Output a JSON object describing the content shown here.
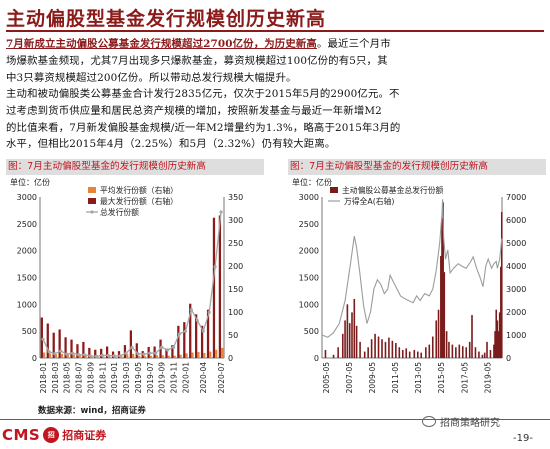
{
  "page": {
    "title": "主动偏股型基金发行规模创历史新高",
    "para1_lines": [
      {
        "hl": "7月新成立主动偏股公募基金发行规模超过2700亿份，为历史新高",
        "rest": "。最近三个月市"
      },
      {
        "hl": "",
        "rest": "场爆款基金频现，尤其7月出现多只爆款基金，募资规模超过100亿份的有5只，其"
      },
      {
        "hl": "",
        "rest": "中3只募资规模超过200亿份。所以带动总发行规模大幅提升。"
      }
    ],
    "para2_lines": [
      "主动和被动偏股类公募基金合计发行2835亿元，仅次于2015年5月的2900亿元。不",
      "过考虑到货币供应量和居民总资产规模的增加，按照新发基金与最近一年新增M2",
      "的比值来看，7月新发偏股基金规模/近一年M2增量约为1.3%，略高于2015年3月的",
      "水平，但相比2015年4月（2.25%）和5月（2.32%）仍有较大距离。"
    ],
    "source": "数据来源：wind，招商证券",
    "logo_text": "CMS",
    "logo_emblem": "招",
    "logo_cn": "招商证券",
    "wechat": "招商策略研究",
    "page_number": "-19-"
  },
  "colors": {
    "accent": "#8b1a1a",
    "header_red": "#c0161f",
    "avg_bar": "#e8843a",
    "max_bar": "#8b1a1a",
    "total_line": "#a6a6a6",
    "fund_bar": "#7b1c1c",
    "index_line": "#9c9c9c"
  },
  "chart_data": [
    {
      "type": "bar",
      "title": "图：7月主动偏股型基金的发行规模创历史新高",
      "unit_label": "单位：亿份",
      "ylim_left": [
        0,
        3000
      ],
      "yticks_left": [
        0,
        500,
        1000,
        1500,
        2000,
        2500,
        3000
      ],
      "ylim_right": [
        0,
        350
      ],
      "yticks_right": [
        0,
        50,
        100,
        150,
        200,
        250,
        300,
        350
      ],
      "xtick_labels": [
        "2018-01",
        "2018-03",
        "2018-05",
        "2018-07",
        "2018-09",
        "2018-11",
        "2019-01",
        "2019-03",
        "2019-05",
        "2019-07",
        "2019-09",
        "2019-11",
        "2020-01",
        "2020-04",
        "2020-07"
      ],
      "legend": [
        "平均发行份额（右轴）",
        "最大发行份额（右轴）",
        "总发行份额"
      ],
      "months": [
        "2018-01",
        "2018-02",
        "2018-03",
        "2018-04",
        "2018-05",
        "2018-06",
        "2018-07",
        "2018-08",
        "2018-09",
        "2018-10",
        "2018-11",
        "2018-12",
        "2019-01",
        "2019-02",
        "2019-03",
        "2019-04",
        "2019-05",
        "2019-06",
        "2019-07",
        "2019-08",
        "2019-09",
        "2019-10",
        "2019-11",
        "2019-12",
        "2020-01",
        "2020-02",
        "2020-03",
        "2020-04",
        "2020-05",
        "2020-06",
        "2020-07"
      ],
      "avg_values": [
        12,
        10,
        8,
        9,
        8,
        7,
        6,
        6,
        4,
        3,
        3,
        4,
        3,
        5,
        8,
        9,
        5,
        4,
        5,
        6,
        6,
        5,
        5,
        7,
        10,
        12,
        13,
        11,
        14,
        18,
        22
      ],
      "max_values": [
        88,
        75,
        55,
        62,
        45,
        40,
        30,
        35,
        22,
        18,
        20,
        25,
        14,
        15,
        28,
        60,
        32,
        15,
        24,
        25,
        40,
        20,
        28,
        70,
        78,
        118,
        95,
        70,
        105,
        305,
        310
      ],
      "total_values": [
        350,
        120,
        80,
        130,
        70,
        90,
        60,
        60,
        40,
        30,
        50,
        50,
        40,
        40,
        90,
        200,
        80,
        70,
        90,
        90,
        200,
        150,
        200,
        450,
        500,
        900,
        700,
        500,
        850,
        1700,
        2720
      ]
    },
    {
      "type": "bar",
      "title": "图：7月主动偏股型基金的发行规模创历史新高",
      "unit_label": "单位：亿份",
      "ylim_left": [
        0,
        3000
      ],
      "yticks_left": [
        0,
        500,
        1000,
        1500,
        2000,
        2500,
        3000
      ],
      "ylim_right": [
        0,
        7000
      ],
      "yticks_right": [
        0,
        1000,
        2000,
        3000,
        4000,
        5000,
        6000,
        7000
      ],
      "xtick_labels": [
        "2005-05",
        "2007-05",
        "2009-05",
        "2011-05",
        "2013-05",
        "2015-05",
        "2017-05",
        "2019-05"
      ],
      "x_range": [
        2005.0,
        2020.6
      ],
      "legend": [
        "主动偏股公募基金总发行份额",
        "万得全A(右轴)"
      ],
      "fund_series_points": [
        [
          2005.3,
          150
        ],
        [
          2006.0,
          60
        ],
        [
          2006.4,
          200
        ],
        [
          2006.8,
          450
        ],
        [
          2007.0,
          700
        ],
        [
          2007.2,
          1000
        ],
        [
          2007.4,
          650
        ],
        [
          2007.6,
          850
        ],
        [
          2007.8,
          1100
        ],
        [
          2008.0,
          600
        ],
        [
          2008.3,
          300
        ],
        [
          2008.7,
          120
        ],
        [
          2009.0,
          200
        ],
        [
          2009.3,
          350
        ],
        [
          2009.6,
          450
        ],
        [
          2009.9,
          400
        ],
        [
          2010.2,
          350
        ],
        [
          2010.5,
          300
        ],
        [
          2010.8,
          380
        ],
        [
          2011.1,
          320
        ],
        [
          2011.4,
          280
        ],
        [
          2011.7,
          200
        ],
        [
          2012.0,
          150
        ],
        [
          2012.3,
          180
        ],
        [
          2012.6,
          120
        ],
        [
          2013.0,
          150
        ],
        [
          2013.3,
          120
        ],
        [
          2013.6,
          100
        ],
        [
          2014.0,
          200
        ],
        [
          2014.3,
          250
        ],
        [
          2014.6,
          400
        ],
        [
          2014.9,
          700
        ],
        [
          2015.1,
          900
        ],
        [
          2015.3,
          1900
        ],
        [
          2015.4,
          2600
        ],
        [
          2015.5,
          2900
        ],
        [
          2015.6,
          1600
        ],
        [
          2015.8,
          500
        ],
        [
          2016.0,
          300
        ],
        [
          2016.3,
          250
        ],
        [
          2016.6,
          200
        ],
        [
          2016.9,
          250
        ],
        [
          2017.2,
          220
        ],
        [
          2017.5,
          200
        ],
        [
          2017.8,
          300
        ],
        [
          2018.0,
          800
        ],
        [
          2018.3,
          200
        ],
        [
          2018.6,
          120
        ],
        [
          2018.9,
          60
        ],
        [
          2019.1,
          100
        ],
        [
          2019.3,
          300
        ],
        [
          2019.6,
          150
        ],
        [
          2019.9,
          250
        ],
        [
          2020.0,
          500
        ],
        [
          2020.1,
          900
        ],
        [
          2020.2,
          700
        ],
        [
          2020.3,
          500
        ],
        [
          2020.4,
          850
        ],
        [
          2020.5,
          1700
        ],
        [
          2020.58,
          2720
        ]
      ],
      "index_series_points": [
        [
          2005.0,
          1000
        ],
        [
          2005.5,
          900
        ],
        [
          2006.0,
          1100
        ],
        [
          2006.5,
          1500
        ],
        [
          2007.0,
          2500
        ],
        [
          2007.5,
          4200
        ],
        [
          2007.8,
          5300
        ],
        [
          2008.0,
          4800
        ],
        [
          2008.3,
          3600
        ],
        [
          2008.6,
          2300
        ],
        [
          2008.9,
          1500
        ],
        [
          2009.2,
          2000
        ],
        [
          2009.5,
          3000
        ],
        [
          2009.8,
          3400
        ],
        [
          2010.1,
          3200
        ],
        [
          2010.4,
          2800
        ],
        [
          2010.7,
          3000
        ],
        [
          2010.9,
          3600
        ],
        [
          2011.2,
          3300
        ],
        [
          2011.5,
          3000
        ],
        [
          2011.8,
          2700
        ],
        [
          2012.1,
          2600
        ],
        [
          2012.5,
          2500
        ],
        [
          2012.9,
          2400
        ],
        [
          2013.2,
          2700
        ],
        [
          2013.5,
          2500
        ],
        [
          2013.9,
          2800
        ],
        [
          2014.3,
          2700
        ],
        [
          2014.6,
          3000
        ],
        [
          2014.9,
          3800
        ],
        [
          2015.2,
          5000
        ],
        [
          2015.4,
          6300
        ],
        [
          2015.45,
          6900
        ],
        [
          2015.55,
          5200
        ],
        [
          2015.7,
          4300
        ],
        [
          2015.9,
          4700
        ],
        [
          2016.1,
          3700
        ],
        [
          2016.4,
          3900
        ],
        [
          2016.8,
          4100
        ],
        [
          2017.1,
          4000
        ],
        [
          2017.5,
          3900
        ],
        [
          2017.9,
          4200
        ],
        [
          2018.1,
          4400
        ],
        [
          2018.4,
          3900
        ],
        [
          2018.7,
          3500
        ],
        [
          2018.95,
          3100
        ],
        [
          2019.2,
          4000
        ],
        [
          2019.4,
          4300
        ],
        [
          2019.7,
          3900
        ],
        [
          2019.9,
          4100
        ],
        [
          2020.1,
          4200
        ],
        [
          2020.2,
          3900
        ],
        [
          2020.4,
          4300
        ],
        [
          2020.58,
          5200
        ]
      ]
    }
  ]
}
